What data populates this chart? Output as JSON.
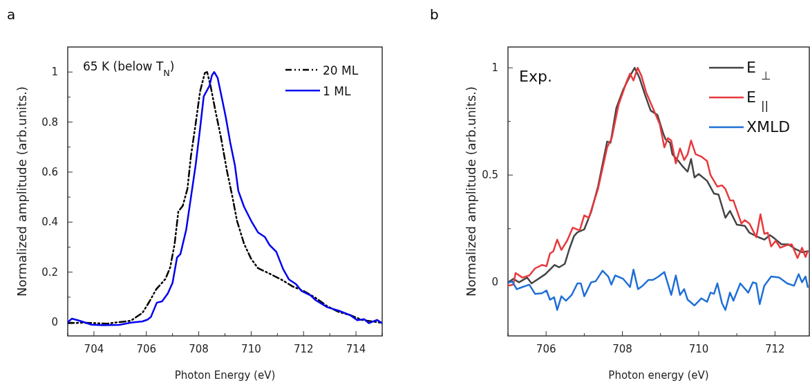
{
  "chart_data": [
    {
      "type": "line",
      "title": "a",
      "xlabel": "Photon Energy (eV)",
      "ylabel": "Normalized amplitude (arb.units.)",
      "annotations": [
        "65 K (below T$_{N}$)"
      ],
      "xlim": [
        703,
        715
      ],
      "ylim": [
        -0.055,
        1.1
      ],
      "xticks": [
        {
          "value": 703,
          "label": null
        },
        704,
        {
          "value": 705,
          "label": null
        },
        706,
        {
          "value": 707,
          "label": null
        },
        708,
        {
          "value": 709,
          "label": null
        },
        710,
        {
          "value": 711,
          "label": null
        },
        712,
        {
          "value": 713,
          "label": null
        },
        714,
        {
          "value": 715,
          "label": null
        }
      ],
      "yticks": [
        0,
        {
          "value": 0.1,
          "label": null
        },
        0.2,
        {
          "value": 0.3,
          "label": null
        },
        0.4,
        {
          "value": 0.5,
          "label": null
        },
        0.6,
        {
          "value": 0.7,
          "label": null
        },
        0.8,
        {
          "value": 0.9,
          "label": null
        },
        1
      ],
      "grid": false,
      "legend": "top right",
      "series": [
        {
          "name": "20 ML",
          "color": "#000000",
          "line_style": "dashed",
          "x": [
            703,
            703.6,
            704.5,
            705.41,
            705.85,
            706.11,
            706.38,
            706.73,
            706.91,
            707.08,
            707.22,
            707.39,
            707.57,
            707.7,
            707.88,
            708.05,
            708.23,
            708.32,
            708.45,
            708.63,
            708.85,
            709.07,
            709.29,
            709.46,
            709.73,
            710,
            710.26,
            710.7,
            711.14,
            711.58,
            712.02,
            712.46,
            712.9,
            713.34,
            713.78,
            714.23,
            715
          ],
          "values": [
            -0.004,
            -0.002,
            -0.006,
            0.006,
            0.037,
            0.081,
            0.132,
            0.173,
            0.219,
            0.313,
            0.442,
            0.465,
            0.534,
            0.663,
            0.792,
            0.922,
            0.996,
            1,
            0.945,
            0.848,
            0.737,
            0.608,
            0.498,
            0.405,
            0.313,
            0.253,
            0.216,
            0.194,
            0.171,
            0.143,
            0.124,
            0.097,
            0.064,
            0.041,
            0.028,
            0.009,
            -0.003
          ]
        },
        {
          "name": "1 ML",
          "color": "#0000ee",
          "line_style": "solid",
          "x": [
            703,
            703.16,
            703.47,
            703.91,
            704.35,
            704.97,
            705.41,
            705.85,
            706.04,
            706.17,
            706.4,
            706.6,
            706.82,
            707,
            707.17,
            707.3,
            707.52,
            707.7,
            707.88,
            708.05,
            708.19,
            708.41,
            708.5,
            708.59,
            708.72,
            708.85,
            709.03,
            709.2,
            709.38,
            709.51,
            709.73,
            710,
            710.26,
            710.52,
            710.7,
            710.96,
            711.22,
            711.44,
            711.71,
            711.93,
            712.28,
            712.46,
            712.9,
            713.34,
            713.78,
            714.05,
            714.31,
            714.49,
            714.8,
            715
          ],
          "values": [
            0,
            0.014,
            0.005,
            -0.01,
            -0.012,
            -0.011,
            -0.002,
            0.003,
            0.01,
            0.02,
            0.078,
            0.083,
            0.115,
            0.157,
            0.258,
            0.272,
            0.369,
            0.498,
            0.627,
            0.774,
            0.903,
            0.945,
            0.986,
            1,
            0.977,
            0.912,
            0.82,
            0.719,
            0.627,
            0.525,
            0.461,
            0.405,
            0.359,
            0.341,
            0.309,
            0.281,
            0.212,
            0.171,
            0.152,
            0.124,
            0.106,
            0.088,
            0.06,
            0.046,
            0.028,
            0.008,
            0.012,
            -0.004,
            0.009,
            -0.004
          ]
        }
      ]
    },
    {
      "type": "line",
      "title": "b",
      "xlabel": "Photon energy (eV)",
      "ylabel": "Normalized amplitude (arb.units.)",
      "annotations": [
        "Exp."
      ],
      "xlim": [
        705,
        712.9
      ],
      "ylim": [
        -0.25,
        1.097
      ],
      "xticks": [
        {
          "value": 705,
          "label": null
        },
        706,
        {
          "value": 707,
          "label": null
        },
        708,
        {
          "value": 709,
          "label": null
        },
        710,
        {
          "value": 711,
          "label": null
        },
        712
      ],
      "yticks": [
        0,
        {
          "value": 0.25,
          "label": null
        },
        0.5,
        {
          "value": 0.75,
          "label": null
        },
        1
      ],
      "grid": false,
      "legend": "top right",
      "series": [
        {
          "name": "E $_{⊥}$",
          "color": "#444444",
          "line_style": "solid",
          "x": [
            705,
            705.14,
            705.29,
            705.5,
            705.62,
            705.98,
            706.22,
            706.34,
            706.49,
            706.61,
            706.73,
            706.82,
            707,
            707.18,
            707.36,
            707.6,
            707.69,
            707.84,
            708.02,
            708.2,
            708.32,
            708.44,
            708.59,
            708.74,
            708.92,
            709.07,
            709.13,
            709.25,
            709.31,
            709.47,
            709.59,
            709.71,
            709.8,
            709.89,
            710,
            710.22,
            710.4,
            710.52,
            710.7,
            710.82,
            711,
            711.21,
            711.33,
            711.57,
            711.72,
            711.87,
            711.99,
            712.17,
            712.35,
            712.53,
            712.71,
            712.86
          ],
          "values": [
            0,
            0.016,
            0,
            0.022,
            -0.005,
            0.038,
            0.081,
            0.07,
            0.086,
            0.156,
            0.215,
            0.233,
            0.247,
            0.328,
            0.446,
            0.656,
            0.651,
            0.812,
            0.898,
            0.962,
            1,
            0.957,
            0.876,
            0.801,
            0.78,
            0.694,
            0.667,
            0.651,
            0.597,
            0.565,
            0.538,
            0.516,
            0.575,
            0.489,
            0.505,
            0.473,
            0.414,
            0.409,
            0.301,
            0.333,
            0.269,
            0.263,
            0.231,
            0.21,
            0.199,
            0.22,
            0.204,
            0.177,
            0.177,
            0.156,
            0.14,
            0.145
          ]
        },
        {
          "name": "E $_{||}$",
          "color": "#e8393c",
          "line_style": "solid",
          "x": [
            705,
            705.14,
            705.2,
            705.38,
            705.56,
            705.71,
            705.89,
            706.01,
            706.1,
            706.19,
            706.29,
            706.4,
            706.55,
            706.7,
            706.88,
            707,
            707.12,
            707.36,
            707.6,
            707.72,
            707.9,
            708.11,
            708.2,
            708.29,
            708.4,
            708.5,
            708.62,
            708.8,
            708.98,
            709.1,
            709.19,
            709.28,
            709.4,
            709.51,
            709.62,
            709.71,
            709.8,
            709.92,
            710.07,
            710.22,
            710.31,
            710.49,
            710.61,
            710.7,
            710.82,
            710.91,
            711.12,
            711.21,
            711.33,
            711.51,
            711.62,
            711.72,
            711.81,
            711.9,
            712.02,
            712.14,
            712.29,
            712.44,
            712.59,
            712.71,
            712.8,
            712.86
          ],
          "values": [
            -0.016,
            -0.011,
            0.043,
            0.022,
            0.032,
            0.065,
            0.081,
            0.075,
            0.134,
            0.145,
            0.199,
            0.151,
            0.194,
            0.255,
            0.242,
            0.312,
            0.301,
            0.435,
            0.629,
            0.672,
            0.828,
            0.935,
            0.973,
            0.941,
            1,
            0.962,
            0.887,
            0.812,
            0.737,
            0.629,
            0.672,
            0.661,
            0.554,
            0.624,
            0.57,
            0.597,
            0.661,
            0.597,
            0.586,
            0.565,
            0.5,
            0.446,
            0.452,
            0.435,
            0.382,
            0.382,
            0.274,
            0.29,
            0.274,
            0.21,
            0.317,
            0.226,
            0.231,
            0.167,
            0.194,
            0.161,
            0.172,
            0.177,
            0.113,
            0.161,
            0.118,
            0.145
          ]
        },
        {
          "name": "XMLD",
          "color": "#1f6fd6",
          "line_style": "solid",
          "x": [
            705,
            705.11,
            705.23,
            705.38,
            705.56,
            705.71,
            705.89,
            706.01,
            706.1,
            706.21,
            706.29,
            706.4,
            706.52,
            706.67,
            706.82,
            706.91,
            707,
            707.18,
            707.3,
            707.48,
            707.63,
            707.71,
            707.81,
            708.02,
            708.2,
            708.29,
            708.41,
            708.53,
            708.68,
            708.8,
            708.95,
            709.1,
            709.28,
            709.4,
            709.51,
            709.62,
            709.71,
            709.89,
            710.07,
            710.22,
            710.31,
            710.4,
            710.49,
            710.61,
            710.7,
            710.82,
            710.91,
            711.09,
            711.3,
            711.42,
            711.51,
            711.6,
            711.72,
            711.9,
            712.11,
            712.32,
            712.5,
            712.62,
            712.71,
            712.8,
            712.86
          ],
          "values": [
            -0.003,
            0.005,
            -0.032,
            -0.022,
            -0.011,
            -0.054,
            -0.051,
            -0.038,
            -0.081,
            -0.07,
            -0.129,
            -0.065,
            -0.086,
            -0.059,
            -0.005,
            -0.005,
            -0.065,
            0,
            0.005,
            0.054,
            0.027,
            -0.011,
            0.032,
            0.016,
            -0.022,
            0.059,
            -0.032,
            -0.016,
            0.011,
            0.011,
            0.027,
            0.048,
            -0.059,
            0.032,
            -0.059,
            -0.032,
            -0.081,
            -0.108,
            -0.075,
            -0.091,
            -0.048,
            -0.054,
            -0.005,
            -0.097,
            -0.129,
            -0.048,
            -0.086,
            -0.005,
            -0.048,
            0,
            -0.005,
            -0.102,
            -0.016,
            0.027,
            0.022,
            -0.005,
            -0.016,
            0.038,
            0,
            0.027,
            -0.022
          ]
        }
      ]
    }
  ]
}
